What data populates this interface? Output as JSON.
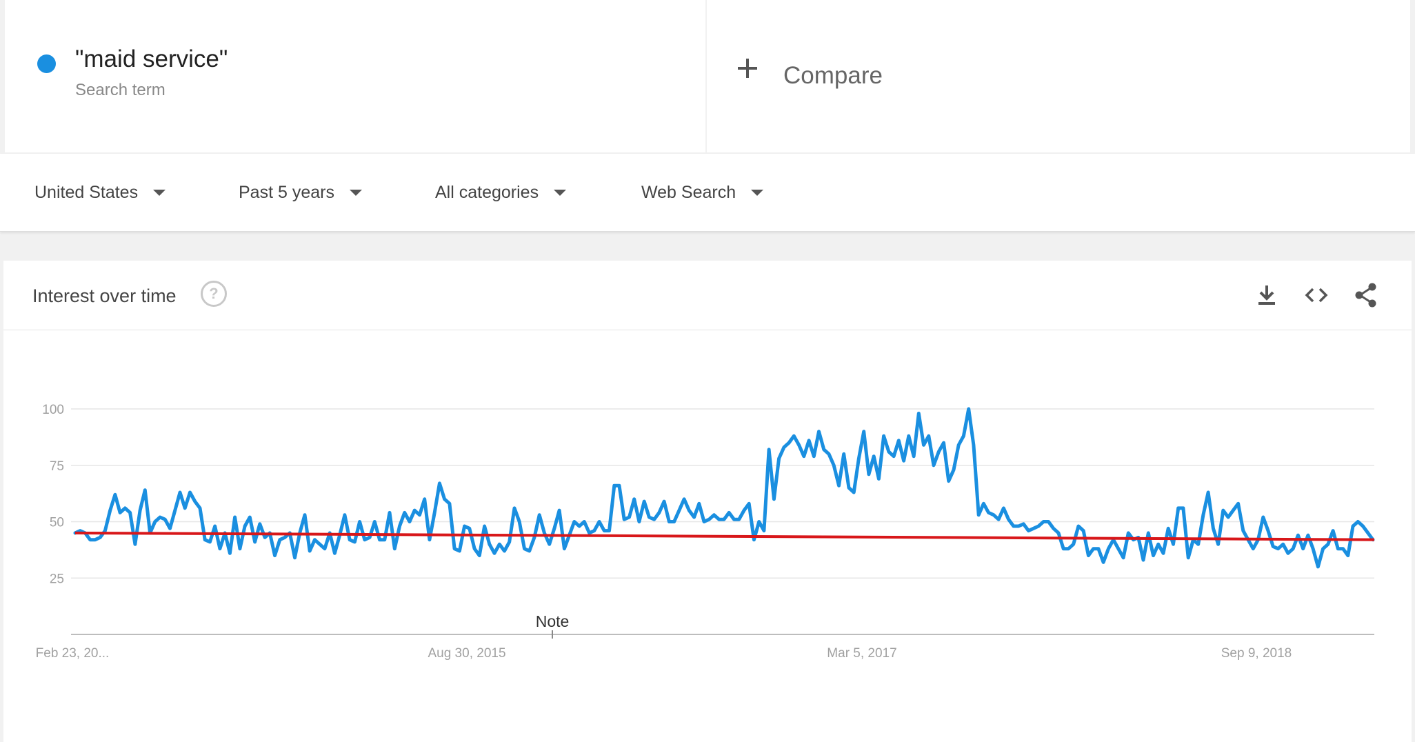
{
  "search_term": {
    "label": "\"maid service\"",
    "sublabel": "Search term",
    "color": "#1a8fe0"
  },
  "compare": {
    "label": "Compare"
  },
  "filters": [
    {
      "label": "United States"
    },
    {
      "label": "Past 5 years"
    },
    {
      "label": "All categories"
    },
    {
      "label": "Web Search"
    }
  ],
  "panel": {
    "title": "Interest over time",
    "help_icon": "help-circle-icon",
    "actions": [
      "download-icon",
      "embed-code-icon",
      "share-icon"
    ]
  },
  "chart_data": {
    "type": "line",
    "title": "",
    "ylabel": "",
    "y_ticks": [
      "100",
      "75",
      "50",
      "25"
    ],
    "ylim": [
      0,
      100
    ],
    "x_ticks": [
      "Feb 23, 20...",
      "Aug 30, 2015",
      "Mar 5, 2017",
      "Sep 9, 2018"
    ],
    "annotation": "Note",
    "grid": true,
    "series": [
      {
        "color": "#1a8fe0",
        "values": [
          45,
          46,
          45,
          42,
          42,
          43,
          46,
          55,
          62,
          54,
          56,
          54,
          40,
          55,
          64,
          45,
          50,
          52,
          51,
          47,
          55,
          63,
          56,
          63,
          59,
          56,
          42,
          41,
          48,
          38,
          45,
          36,
          52,
          38,
          48,
          52,
          41,
          49,
          43,
          45,
          35,
          42,
          43,
          45,
          34,
          45,
          53,
          37,
          42,
          40,
          38,
          45,
          36,
          44,
          53,
          42,
          41,
          50,
          42,
          43,
          50,
          42,
          42,
          54,
          38,
          48,
          54,
          50,
          55,
          53,
          60,
          42,
          54,
          67,
          60,
          58,
          38,
          37,
          48,
          47,
          38,
          35,
          48,
          40,
          36,
          40,
          37,
          41,
          56,
          50,
          38,
          37,
          43,
          53,
          45,
          40,
          47,
          55,
          38,
          44,
          50,
          48,
          50,
          45,
          46,
          50,
          46,
          46,
          66,
          66,
          51,
          52,
          60,
          50,
          59,
          52,
          51,
          54,
          59,
          50,
          50,
          55,
          60,
          55,
          52,
          58,
          50,
          51,
          53,
          51,
          51,
          54,
          51,
          51,
          55,
          58,
          42,
          50,
          46,
          82,
          60,
          78,
          83,
          85,
          88,
          84,
          79,
          86,
          79,
          90,
          82,
          80,
          75,
          66,
          80,
          65,
          63,
          78,
          90,
          71,
          79,
          69,
          88,
          81,
          79,
          86,
          77,
          88,
          79,
          98,
          84,
          88,
          75,
          81,
          85,
          68,
          73,
          84,
          88,
          100,
          84,
          53,
          58,
          54,
          53,
          51,
          56,
          51,
          48,
          48,
          49,
          46,
          47,
          48,
          50,
          50,
          47,
          45,
          38,
          38,
          40,
          48,
          46,
          35,
          38,
          38,
          32,
          38,
          42,
          38,
          34,
          45,
          42,
          43,
          33,
          45,
          35,
          40,
          36,
          47,
          40,
          56,
          56,
          34,
          42,
          40,
          53,
          63,
          47,
          40,
          55,
          52,
          55,
          58,
          46,
          42,
          38,
          42,
          52,
          46,
          39,
          38,
          40,
          36,
          38,
          44,
          38,
          44,
          38,
          30,
          38,
          40,
          46,
          38,
          38,
          35,
          48,
          50,
          48,
          45,
          42
        ]
      },
      {
        "color": "#d8171a",
        "values_start": 45,
        "values_end": 42
      }
    ]
  }
}
